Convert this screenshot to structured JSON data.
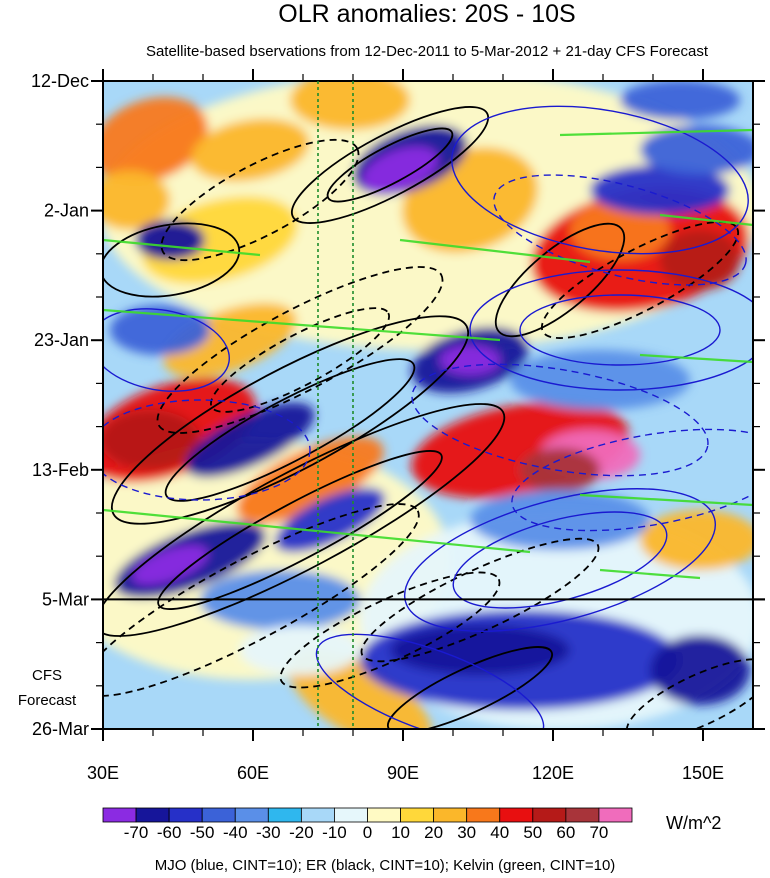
{
  "chart_data": {
    "type": "heatmap",
    "title": "OLR anomalies: 20S - 10S",
    "subtitle": "Satellite-based bservations from 12-Dec-2011 to 5-Mar-2012 + 21-day CFS Forecast",
    "x_axis": {
      "range": [
        30,
        160
      ],
      "ticks": [
        30,
        60,
        90,
        120,
        150
      ],
      "tick_labels": [
        "30E",
        "60E",
        "90E",
        "120E",
        "150E"
      ]
    },
    "y_axis": {
      "range": [
        "12-Dec-2011",
        "26-Mar-2012"
      ],
      "tick_labels": [
        "12-Dec",
        "2-Jan",
        "23-Jan",
        "13-Feb",
        "5-Mar",
        "26-Mar"
      ],
      "tick_days": [
        0,
        21,
        42,
        63,
        84,
        105
      ],
      "observation_end": "5-Mar",
      "forecast_label": [
        "CFS",
        "Forecast"
      ]
    },
    "colorbar": {
      "unit": "W/m^2",
      "levels": [
        -70,
        -60,
        -50,
        -40,
        -30,
        -20,
        -10,
        0,
        10,
        20,
        30,
        40,
        50,
        60,
        70
      ],
      "colors": [
        "#8b2be2",
        "#16159a",
        "#2630c8",
        "#3b62d8",
        "#5a8fe8",
        "#2fb7ee",
        "#a8d8f8",
        "#e6f7fb",
        "#fffac4",
        "#ffd83a",
        "#fbb72a",
        "#f8781b",
        "#e80f10",
        "#b51a18",
        "#a8343a",
        "#f06cbc"
      ]
    },
    "reference_lines": {
      "dashed_green_longitudes": [
        73,
        80
      ]
    },
    "legend_text": "MJO (blue, CINT=10); ER (black, CINT=10); Kelvin (green, CINT=10)",
    "colors": {
      "mjo": "#1a1ad0",
      "er": "#000000",
      "kelvin": "#3cdc2a",
      "reference": "#1e8c2c"
    }
  }
}
